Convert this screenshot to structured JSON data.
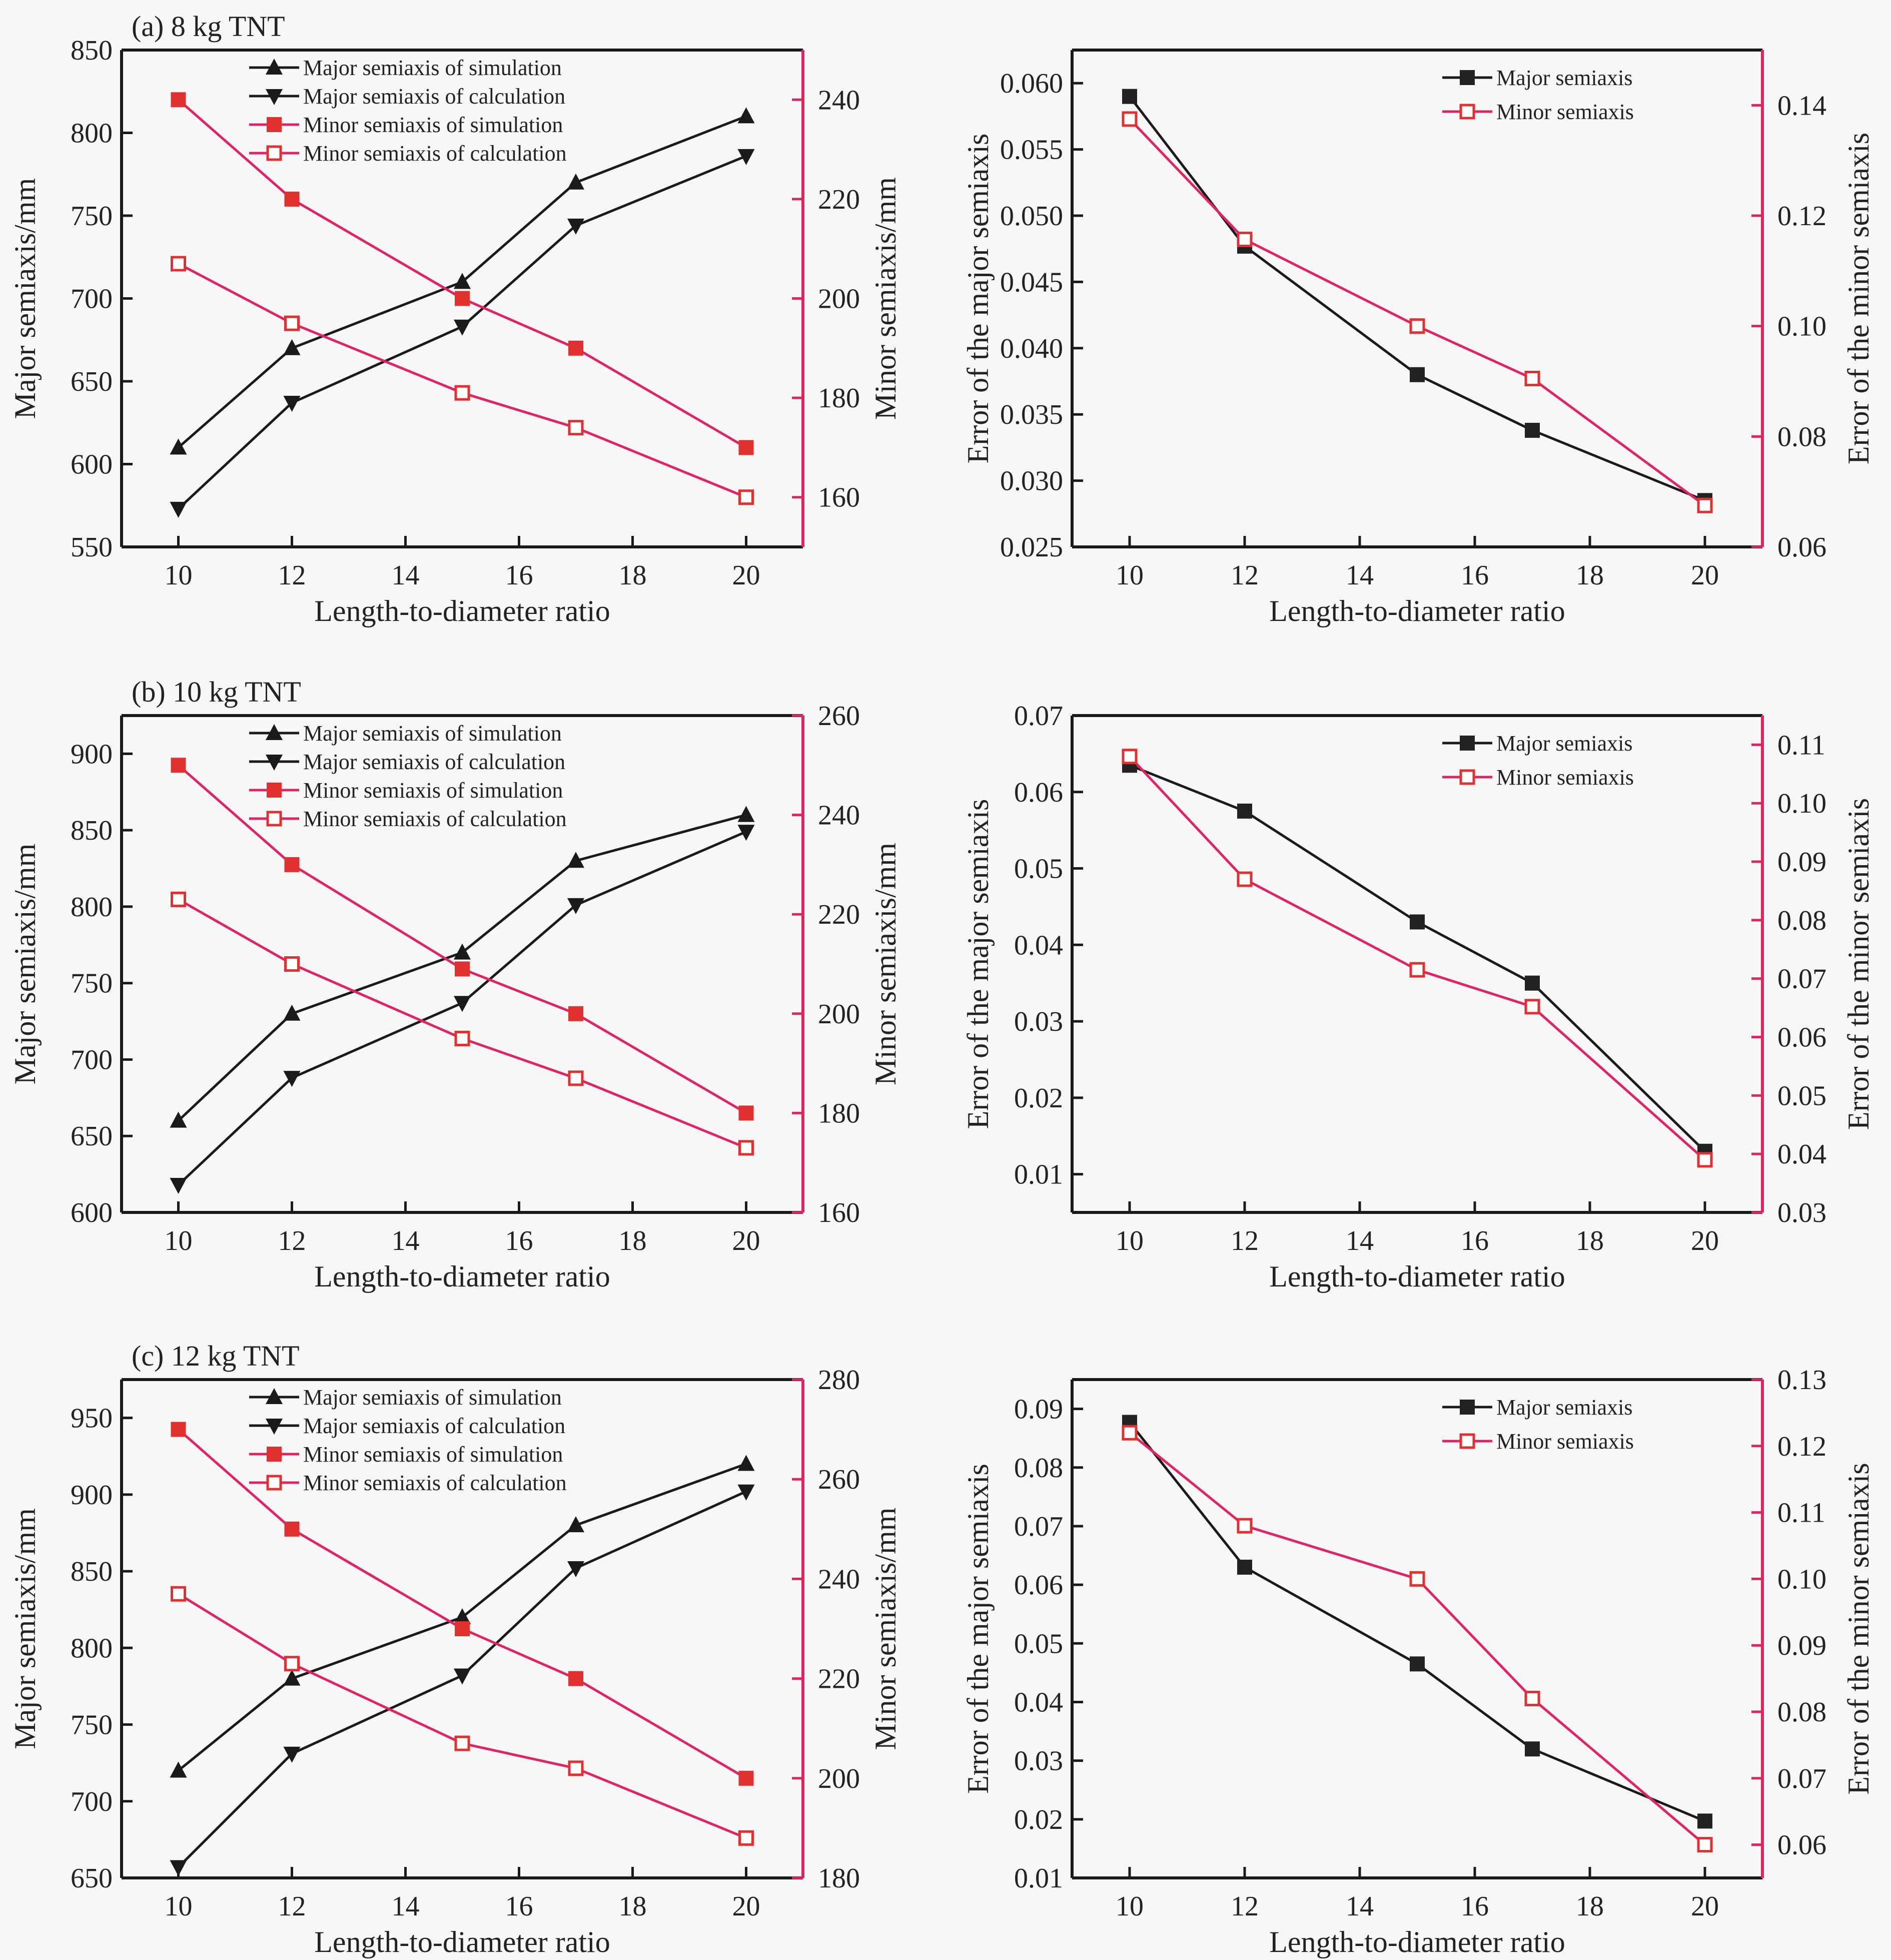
{
  "chart_data": [
    {
      "type": "line",
      "panel": "a-left",
      "title": "(a) 8 kg TNT",
      "xlabel": "Length-to-diameter ratio",
      "ylabel": "Major semiaxis/mm",
      "y2label": "Minor semiaxis/mm",
      "x": [
        10,
        12,
        15,
        17,
        20
      ],
      "xlim": [
        9,
        21
      ],
      "xticks": [
        10,
        12,
        14,
        16,
        18,
        20
      ],
      "ylim": [
        550,
        850
      ],
      "yticks": [
        550,
        600,
        650,
        700,
        750,
        800,
        850
      ],
      "y2lim": [
        150,
        250
      ],
      "y2ticks": [
        160,
        180,
        200,
        220,
        240
      ],
      "legend_position": "top-center",
      "series": [
        {
          "name": "Major semiaxis of simulation",
          "axis": "left",
          "marker": "triangle-up",
          "color": "#1a1a1a",
          "values": [
            610,
            670,
            710,
            770,
            810
          ]
        },
        {
          "name": "Major semiaxis of calculation",
          "axis": "left",
          "marker": "triangle-down",
          "color": "#1a1a1a",
          "values": [
            573,
            637,
            683,
            744,
            786
          ]
        },
        {
          "name": "Minor semiaxis of simulation",
          "axis": "right",
          "marker": "square-filled",
          "color": "#e0245e",
          "values": [
            240,
            220,
            200,
            190,
            170
          ]
        },
        {
          "name": "Minor semiaxis of calculation",
          "axis": "right",
          "marker": "square-open",
          "color": "#e0245e",
          "values": [
            207,
            195,
            181,
            174,
            160
          ]
        }
      ]
    },
    {
      "type": "line",
      "panel": "a-right",
      "title": "",
      "xlabel": "Length-to-diameter ratio",
      "ylabel": "Error of the major semiaxis",
      "y2label": "Error of the minor semiaxis",
      "x": [
        10,
        12,
        15,
        17,
        20
      ],
      "xlim": [
        9,
        21
      ],
      "xticks": [
        10,
        12,
        14,
        16,
        18,
        20
      ],
      "ylim": [
        0.025,
        0.0625
      ],
      "yticks": [
        "0.025",
        "0.030",
        "0.035",
        "0.040",
        "0.045",
        "0.050",
        "0.055",
        "0.060"
      ],
      "y2lim": [
        0.06,
        0.15
      ],
      "y2ticks": [
        "0.06",
        "0.08",
        "0.10",
        "0.12",
        "0.14"
      ],
      "legend_position": "top-right",
      "series": [
        {
          "name": "Major semiaxis",
          "axis": "left",
          "marker": "square-filled",
          "color": "#1a1a1a",
          "values": [
            0.059,
            0.0477,
            0.038,
            0.0338,
            0.0285
          ]
        },
        {
          "name": "Minor semiaxis",
          "axis": "right",
          "marker": "square-open",
          "color": "#e0245e",
          "values": [
            0.1375,
            0.1157,
            0.1,
            0.0905,
            0.0675
          ]
        }
      ]
    },
    {
      "type": "line",
      "panel": "b-left",
      "title": "(b) 10 kg TNT",
      "xlabel": "Length-to-diameter ratio",
      "ylabel": "Major semiaxis/mm",
      "y2label": "Minor semiaxis/mm",
      "x": [
        10,
        12,
        15,
        17,
        20
      ],
      "xlim": [
        9,
        21
      ],
      "xticks": [
        10,
        12,
        14,
        16,
        18,
        20
      ],
      "ylim": [
        600,
        925
      ],
      "yticks": [
        600,
        650,
        700,
        750,
        800,
        850,
        900
      ],
      "y2lim": [
        160,
        260
      ],
      "y2ticks": [
        160,
        180,
        200,
        220,
        240,
        260
      ],
      "legend_position": "top-center",
      "series": [
        {
          "name": "Major semiaxis of simulation",
          "axis": "left",
          "marker": "triangle-up",
          "color": "#1a1a1a",
          "values": [
            660,
            730,
            770,
            830,
            860
          ]
        },
        {
          "name": "Major semiaxis of calculation",
          "axis": "left",
          "marker": "triangle-down",
          "color": "#1a1a1a",
          "values": [
            618,
            688,
            737,
            801,
            849
          ]
        },
        {
          "name": "Minor semiaxis of simulation",
          "axis": "right",
          "marker": "square-filled",
          "color": "#e0245e",
          "values": [
            250,
            230,
            209,
            200,
            180
          ]
        },
        {
          "name": "Minor semiaxis of calculation",
          "axis": "right",
          "marker": "square-open",
          "color": "#e0245e",
          "values": [
            223,
            210,
            195,
            187,
            173
          ]
        }
      ]
    },
    {
      "type": "line",
      "panel": "b-right",
      "title": "",
      "xlabel": "Length-to-diameter ratio",
      "ylabel": "Error of the major semiaxis",
      "y2label": "Error of the minor semiaxis",
      "x": [
        10,
        12,
        15,
        17,
        20
      ],
      "xlim": [
        9,
        21
      ],
      "xticks": [
        10,
        12,
        14,
        16,
        18,
        20
      ],
      "ylim": [
        0.005,
        0.07
      ],
      "yticks": [
        "0.01",
        "0.02",
        "0.03",
        "0.04",
        "0.05",
        "0.06",
        "0.07"
      ],
      "y2lim": [
        0.03,
        0.115
      ],
      "y2ticks": [
        "0.03",
        "0.04",
        "0.05",
        "0.06",
        "0.07",
        "0.08",
        "0.09",
        "0.10",
        "0.11"
      ],
      "legend_position": "top-right",
      "series": [
        {
          "name": "Major semiaxis",
          "axis": "left",
          "marker": "square-filled",
          "color": "#1a1a1a",
          "values": [
            0.0635,
            0.0575,
            0.043,
            0.035,
            0.013
          ]
        },
        {
          "name": "Minor semiaxis",
          "axis": "right",
          "marker": "square-open",
          "color": "#e0245e",
          "values": [
            0.108,
            0.087,
            0.0715,
            0.0652,
            0.039
          ]
        }
      ]
    },
    {
      "type": "line",
      "panel": "c-left",
      "title": "(c) 12 kg TNT",
      "xlabel": "Length-to-diameter ratio",
      "ylabel": "Major semiaxis/mm",
      "y2label": "Minor semiaxis/mm",
      "x": [
        10,
        12,
        15,
        17,
        20
      ],
      "xlim": [
        9,
        21
      ],
      "xticks": [
        10,
        12,
        14,
        16,
        18,
        20
      ],
      "ylim": [
        650,
        975
      ],
      "yticks": [
        650,
        700,
        750,
        800,
        850,
        900,
        950
      ],
      "y2lim": [
        180,
        280
      ],
      "y2ticks": [
        180,
        200,
        220,
        240,
        260,
        280
      ],
      "legend_position": "top-center",
      "series": [
        {
          "name": "Major semiaxis of simulation",
          "axis": "left",
          "marker": "triangle-up",
          "color": "#1a1a1a",
          "values": [
            720,
            780,
            820,
            880,
            920
          ]
        },
        {
          "name": "Major semiaxis of calculation",
          "axis": "left",
          "marker": "triangle-down",
          "color": "#1a1a1a",
          "values": [
            657,
            731,
            782,
            852,
            902
          ]
        },
        {
          "name": "Minor semiaxis of simulation",
          "axis": "right",
          "marker": "square-filled",
          "color": "#e0245e",
          "values": [
            270,
            250,
            230,
            220,
            200
          ]
        },
        {
          "name": "Minor semiaxis of calculation",
          "axis": "right",
          "marker": "square-open",
          "color": "#e0245e",
          "values": [
            237,
            223,
            207,
            202,
            188
          ]
        }
      ]
    },
    {
      "type": "line",
      "panel": "c-right",
      "title": "",
      "xlabel": "Length-to-diameter ratio",
      "ylabel": "Error of the major semiaxis",
      "y2label": "Error of the minor semiaxis",
      "x": [
        10,
        12,
        15,
        17,
        20
      ],
      "xlim": [
        9,
        21
      ],
      "xticks": [
        10,
        12,
        14,
        16,
        18,
        20
      ],
      "ylim": [
        0.01,
        0.095
      ],
      "yticks": [
        "0.01",
        "0.02",
        "0.03",
        "0.04",
        "0.05",
        "0.06",
        "0.07",
        "0.08",
        "0.09"
      ],
      "y2lim": [
        0.055,
        0.13
      ],
      "y2ticks": [
        "0.06",
        "0.07",
        "0.08",
        "0.09",
        "0.10",
        "0.11",
        "0.12",
        "0.13"
      ],
      "legend_position": "top-right",
      "series": [
        {
          "name": "Major semiaxis",
          "axis": "left",
          "marker": "square-filled",
          "color": "#1a1a1a",
          "values": [
            0.0877,
            0.063,
            0.0465,
            0.032,
            0.0197
          ]
        },
        {
          "name": "Minor semiaxis",
          "axis": "right",
          "marker": "square-open",
          "color": "#e0245e",
          "values": [
            0.122,
            0.108,
            0.1,
            0.082,
            0.06
          ]
        }
      ]
    }
  ],
  "colors": {
    "axis": "#1a1a1a",
    "secondary_axis": "#e0245e",
    "background": "#f7f7f7"
  }
}
